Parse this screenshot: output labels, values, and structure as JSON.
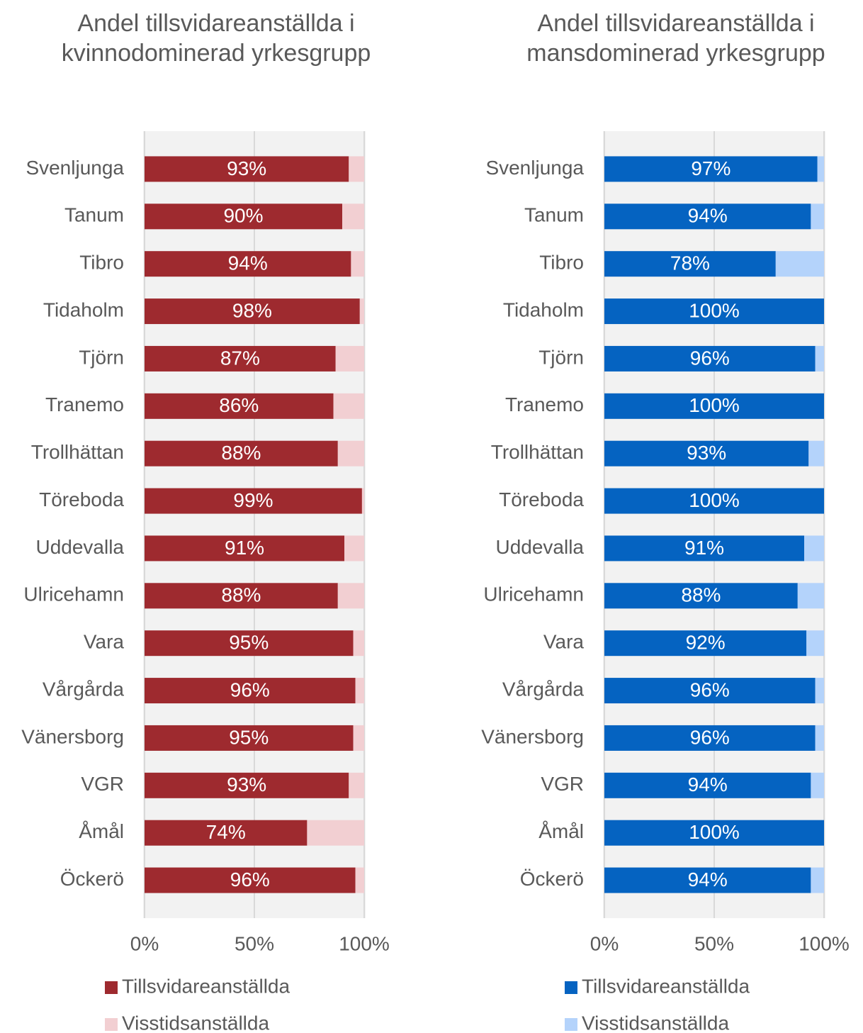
{
  "chart_data": [
    {
      "type": "stacked-barh",
      "title": "Andel tillsvidareanställda i kvinnodominerad yrkesgrupp",
      "categories": [
        "Svenljunga",
        "Tanum",
        "Tibro",
        "Tidaholm",
        "Tjörn",
        "Tranemo",
        "Trollhättan",
        "Töreboda",
        "Uddevalla",
        "Ulricehamn",
        "Vara",
        "Vårgårda",
        "Vänersborg",
        "VGR",
        "Åmål",
        "Öckerö"
      ],
      "series": [
        {
          "name": "Tillsvidareanställda",
          "color": "#9e2a2f",
          "values": [
            93,
            90,
            94,
            98,
            87,
            86,
            88,
            99,
            91,
            88,
            95,
            96,
            95,
            93,
            74,
            96
          ],
          "value_labels": [
            "93%",
            "90%",
            "94%",
            "98%",
            "87%",
            "86%",
            "88%",
            "99%",
            "91%",
            "88%",
            "95%",
            "96%",
            "95%",
            "93%",
            "74%",
            "96%"
          ]
        },
        {
          "name": "Visstidsanställda",
          "color": "#f2cfd2",
          "values": [
            7,
            10,
            6,
            2,
            13,
            14,
            12,
            1,
            9,
            12,
            5,
            4,
            5,
            7,
            26,
            4
          ]
        }
      ],
      "xlim": [
        0,
        100
      ],
      "xticks": [
        {
          "value": 0,
          "label": "0%"
        },
        {
          "value": 50,
          "label": "50%"
        },
        {
          "value": 100,
          "label": "100%"
        }
      ],
      "grid": true,
      "legend": "bottom"
    },
    {
      "type": "stacked-barh",
      "title": "Andel tillsvidareanställda i mansdominerad yrkesgrupp",
      "categories": [
        "Svenljunga",
        "Tanum",
        "Tibro",
        "Tidaholm",
        "Tjörn",
        "Tranemo",
        "Trollhättan",
        "Töreboda",
        "Uddevalla",
        "Ulricehamn",
        "Vara",
        "Vårgårda",
        "Vänersborg",
        "VGR",
        "Åmål",
        "Öckerö"
      ],
      "series": [
        {
          "name": "Tillsvidareanställda",
          "color": "#0563c1",
          "values": [
            97,
            94,
            78,
            100,
            96,
            100,
            93,
            100,
            91,
            88,
            92,
            96,
            96,
            94,
            100,
            94
          ],
          "value_labels": [
            "97%",
            "94%",
            "78%",
            "100%",
            "96%",
            "100%",
            "93%",
            "100%",
            "91%",
            "88%",
            "92%",
            "96%",
            "96%",
            "94%",
            "100%",
            "94%"
          ]
        },
        {
          "name": "Visstidsanställda",
          "color": "#b4d3fb",
          "values": [
            3,
            6,
            22,
            0,
            4,
            0,
            7,
            0,
            9,
            12,
            8,
            4,
            4,
            6,
            0,
            6
          ]
        }
      ],
      "xlim": [
        0,
        100
      ],
      "xticks": [
        {
          "value": 0,
          "label": "0%"
        },
        {
          "value": 50,
          "label": "50%"
        },
        {
          "value": 100,
          "label": "100%"
        }
      ],
      "grid": true,
      "legend": "bottom"
    }
  ]
}
